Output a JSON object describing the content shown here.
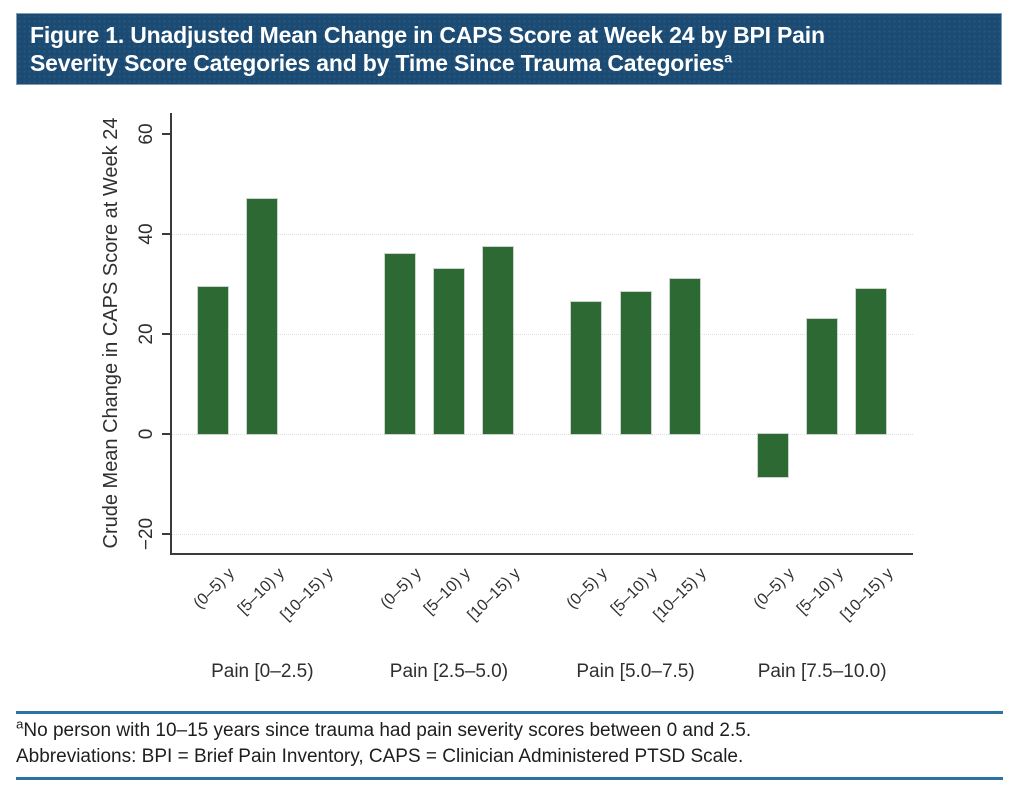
{
  "header": {
    "title_line1": "Figure 1. Unadjusted Mean Change in CAPS Score at Week 24 by BPI Pain",
    "title_line2": "Severity Score Categories and by Time Since Trauma Categories",
    "title_superscript": "a",
    "background_color": "#1b4a73",
    "text_color": "#ffffff"
  },
  "chart_data": {
    "type": "bar",
    "title": "",
    "xlabel": "",
    "ylabel": "Crude Mean Change in CAPS Score at Week 24",
    "ylim": [
      -24,
      64
    ],
    "yticks": [
      60,
      40,
      20,
      0,
      -20
    ],
    "gridlines_at": [
      40,
      20,
      0,
      -20
    ],
    "grid": "horizontal-dotted",
    "legend": "none",
    "bar_color": "#2d6a33",
    "categories": [
      "(0–5) y",
      "[5–10) y",
      "[10–15) y"
    ],
    "groups": [
      {
        "label": "Pain [0–2.5)",
        "values": [
          29.5,
          47,
          null
        ]
      },
      {
        "label": "Pain [2.5–5.0)",
        "values": [
          36,
          33,
          37.5
        ]
      },
      {
        "label": "Pain [5.0–7.5)",
        "values": [
          26.5,
          28.5,
          31
        ]
      },
      {
        "label": "Pain [7.5–10.0)",
        "values": [
          -8.5,
          23,
          29
        ]
      }
    ]
  },
  "footnotes": {
    "superscript": "a",
    "line1": "No person with 10–15 years since trauma had pain severity scores between 0 and 2.5.",
    "line2": "Abbreviations: BPI = Brief Pain Inventory, CAPS = Clinician Administered PTSD Scale.",
    "rule_color": "#2c72a5"
  }
}
